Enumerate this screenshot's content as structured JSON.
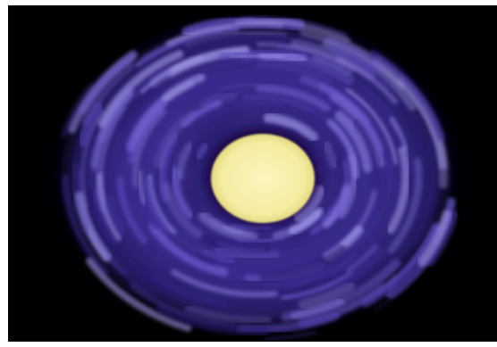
{
  "scene": {
    "subject": "glowing-disk-with-swirl",
    "colors": {
      "background": "#000002",
      "swirl_dark": "#160b3a",
      "swirl_mid": "#3a2a8a",
      "swirl_light": "#7f6fd6",
      "swirl_highlight": "#b7aef0",
      "core": "#f7f0a6",
      "core_edge": "#e9df86"
    }
  }
}
